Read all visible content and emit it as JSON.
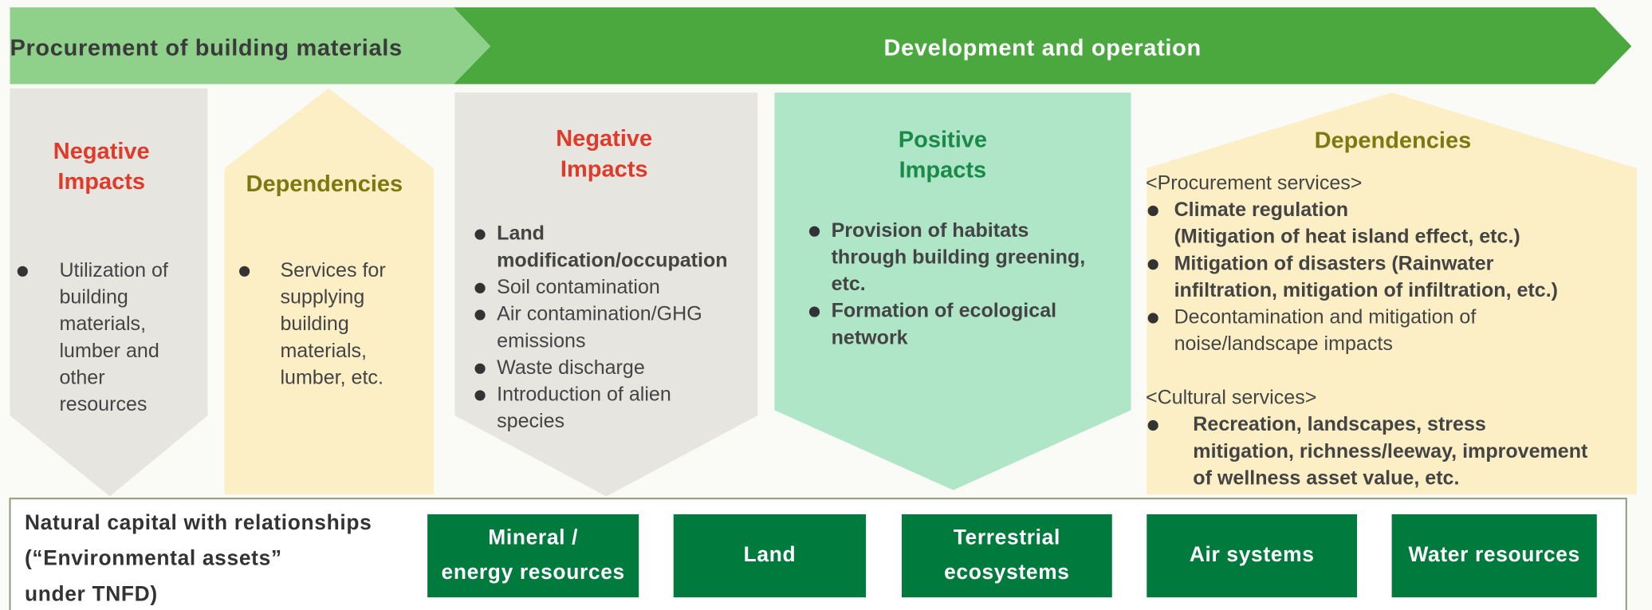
{
  "stages": [
    "Procurement of building materials",
    "Development and operation"
  ],
  "panels": [
    {
      "title": [
        "Negative",
        "Impacts"
      ],
      "items": [
        {
          "lines": [
            "Utilization of",
            "building",
            "materials,",
            "lumber and",
            "other",
            "resources"
          ]
        }
      ]
    },
    {
      "title": [
        "Dependencies"
      ],
      "items": [
        {
          "lines": [
            "Services for",
            "supplying",
            "building",
            "materials,",
            "lumber, etc."
          ]
        }
      ]
    },
    {
      "title": [
        "Negative",
        "Impacts"
      ],
      "items": [
        {
          "lines": [
            "Land",
            "modification/occupation"
          ],
          "bold": true
        },
        {
          "lines": [
            "Soil contamination"
          ]
        },
        {
          "lines": [
            "Air contamination/GHG",
            "emissions"
          ]
        },
        {
          "lines": [
            "Waste discharge"
          ]
        },
        {
          "lines": [
            "Introduction of alien",
            "species"
          ]
        }
      ]
    },
    {
      "title": [
        "Positive",
        "Impacts"
      ],
      "items": [
        {
          "lines": [
            "Provision of habitats",
            "through building greening,",
            "etc."
          ],
          "bold": true
        },
        {
          "lines": [
            "Formation of ecological",
            "network"
          ],
          "bold": true
        }
      ]
    },
    {
      "title": [
        "Dependencies"
      ],
      "sections": [
        {
          "heading": "<Procurement services>",
          "items": [
            {
              "lines": [
                "Climate regulation",
                "(Mitigation of heat island effect, etc.)"
              ],
              "bold": true
            },
            {
              "lines": [
                "Mitigation of disasters (Rainwater",
                "infiltration, mitigation of infiltration, etc.)"
              ],
              "bold": true
            },
            {
              "lines": [
                "Decontamination and mitigation of",
                "noise/landscape impacts"
              ]
            }
          ]
        },
        {
          "heading": "<Cultural services>",
          "items": [
            {
              "lines": [
                "Recreation, landscapes, stress",
                "mitigation, richness/leeway, improvement",
                "of wellness asset value, etc."
              ],
              "bold": true
            }
          ]
        }
      ]
    }
  ],
  "footer": {
    "label": [
      "Natural capital with relationships",
      "(“Environmental assets”",
      "under TNFD)"
    ],
    "assets": [
      [
        "Mineral /",
        "energy resources"
      ],
      [
        "Land"
      ],
      [
        "Terrestrial",
        "ecosystems"
      ],
      [
        "Air systems"
      ],
      [
        "Water resources"
      ]
    ]
  }
}
